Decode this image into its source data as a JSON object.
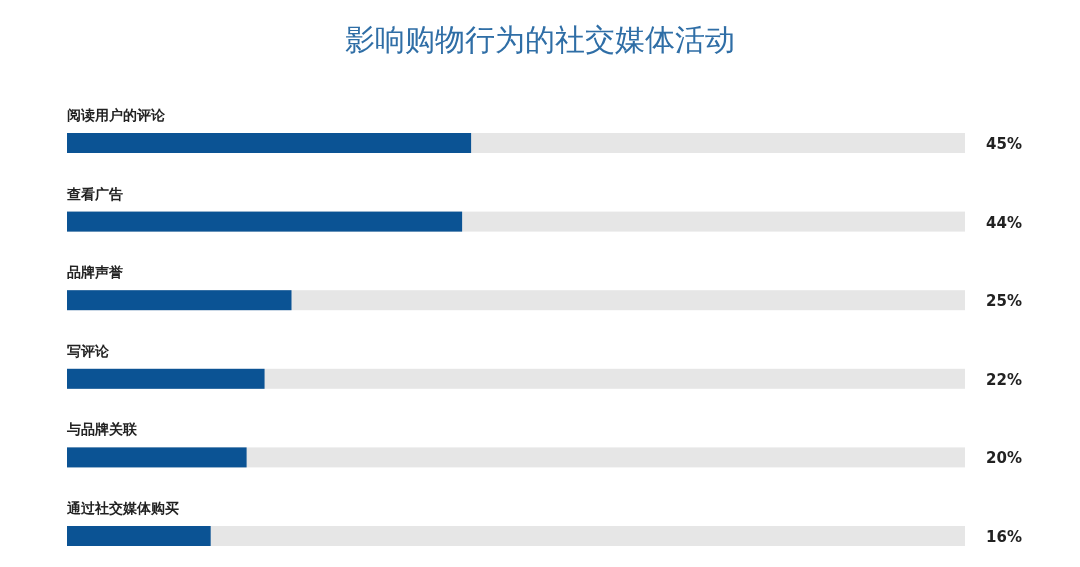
{
  "chart_data": {
    "type": "bar",
    "orientation": "horizontal",
    "title": "影响购物行为的社交媒体活动",
    "categories": [
      "阅读用户的评论",
      "查看广告",
      "品牌声誉",
      "写评论",
      "与品牌关联",
      "通过社交媒体购买"
    ],
    "values": [
      45,
      44,
      25,
      22,
      20,
      16
    ],
    "value_labels": [
      "45%",
      "44%",
      "25%",
      "22%",
      "20%",
      "16%"
    ],
    "color": "#0b5394",
    "xlim": [
      0,
      100
    ],
    "tick_labels": false
  }
}
